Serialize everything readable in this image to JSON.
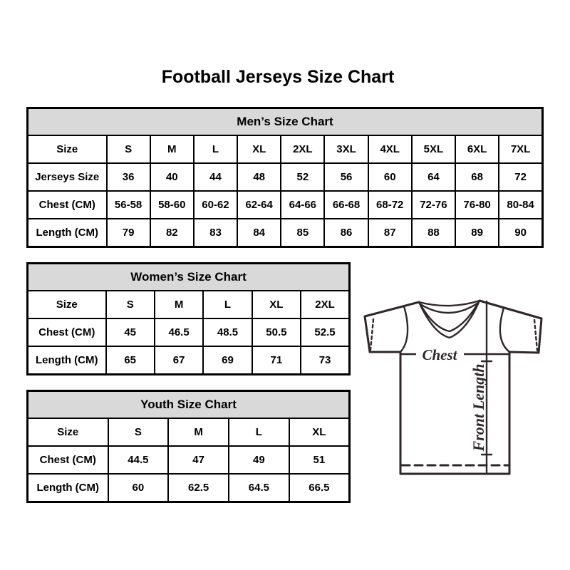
{
  "page": {
    "title": "Football Jerseys Size Chart"
  },
  "tables": {
    "men": {
      "title": "Men’s Size Chart",
      "rows": [
        [
          "Size",
          "S",
          "M",
          "L",
          "XL",
          "2XL",
          "3XL",
          "4XL",
          "5XL",
          "6XL",
          "7XL"
        ],
        [
          "Jerseys Size",
          "36",
          "40",
          "44",
          "48",
          "52",
          "56",
          "60",
          "64",
          "68",
          "72"
        ],
        [
          "Chest (CM)",
          "56-58",
          "58-60",
          "60-62",
          "62-64",
          "64-66",
          "66-68",
          "68-72",
          "72-76",
          "76-80",
          "80-84"
        ],
        [
          "Length (CM)",
          "79",
          "82",
          "83",
          "84",
          "85",
          "86",
          "87",
          "88",
          "89",
          "90"
        ]
      ]
    },
    "women": {
      "title": "Women’s Size Chart",
      "rows": [
        [
          "Size",
          "S",
          "M",
          "L",
          "XL",
          "2XL"
        ],
        [
          "Chest (CM)",
          "45",
          "46.5",
          "48.5",
          "50.5",
          "52.5"
        ],
        [
          "Length (CM)",
          "65",
          "67",
          "69",
          "71",
          "73"
        ]
      ]
    },
    "youth": {
      "title": "Youth Size Chart",
      "rows": [
        [
          "Size",
          "S",
          "M",
          "L",
          "XL"
        ],
        [
          "Chest (CM)",
          "44.5",
          "47",
          "49",
          "51"
        ],
        [
          "Length (CM)",
          "60",
          "62.5",
          "64.5",
          "66.5"
        ]
      ]
    }
  },
  "diagram": {
    "chest_label": "Chest",
    "front_length_label": "Front Length"
  },
  "colors": {
    "header_bg": "#d9d9d9",
    "table_border": "#000000",
    "jersey_line": "#2e2628"
  }
}
